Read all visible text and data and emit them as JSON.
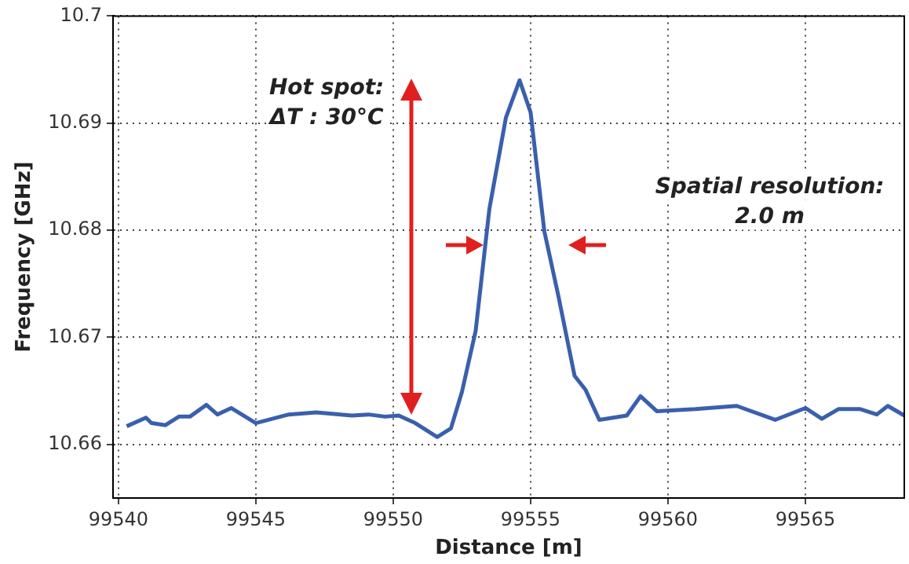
{
  "chart_data": {
    "type": "line",
    "xlabel": "Distance [m]",
    "ylabel": "Frequency [GHz]",
    "xlim": [
      99539.8,
      99568.6
    ],
    "xticks": [
      99540,
      99545,
      99550,
      99555,
      99560,
      99565
    ],
    "ylim": [
      10.655,
      10.7
    ],
    "yticks": [
      10.66,
      10.67,
      10.68,
      10.69,
      10.7
    ],
    "grid": true,
    "line_style": "solid",
    "marker": "none",
    "annotations": [
      "Hot spot:\nΔT : 30°C",
      "Spatial resolution:\n2.0 m"
    ],
    "series": [
      {
        "color": "#3a5fad",
        "x": [
          99540.3,
          99541,
          99541.2,
          99541.7,
          99542.2,
          99542.6,
          99543.2,
          99543.6,
          99544.1,
          99545,
          99546.2,
          99547.2,
          99548.5,
          99549.1,
          99549.7,
          99550.2,
          99550.8,
          99551.6,
          99552.1,
          99552.5,
          99553,
          99553.5,
          99554.1,
          99554.6,
          99555,
          99555.5,
          99556,
          99556.6,
          99557,
          99557.5,
          99558.5,
          99559,
          99559.6,
          99561,
          99562.5,
          99563.9,
          99565,
          99565.6,
          99566.2,
          99567,
          99567.6,
          99568,
          99568.6
        ],
        "values": [
          10.6617,
          10.6625,
          10.662,
          10.6618,
          10.6626,
          10.6626,
          10.6637,
          10.6628,
          10.6634,
          10.662,
          10.6628,
          10.663,
          10.6627,
          10.6628,
          10.6626,
          10.6627,
          10.662,
          10.6607,
          10.6615,
          10.6649,
          10.6706,
          10.682,
          10.6905,
          10.694,
          10.691,
          10.6799,
          10.674,
          10.6664,
          10.6651,
          10.6623,
          10.6627,
          10.6645,
          10.6631,
          10.6633,
          10.6636,
          10.6623,
          10.6634,
          10.6624,
          10.6633,
          10.6633,
          10.6628,
          10.6636,
          10.6627
        ]
      }
    ]
  }
}
